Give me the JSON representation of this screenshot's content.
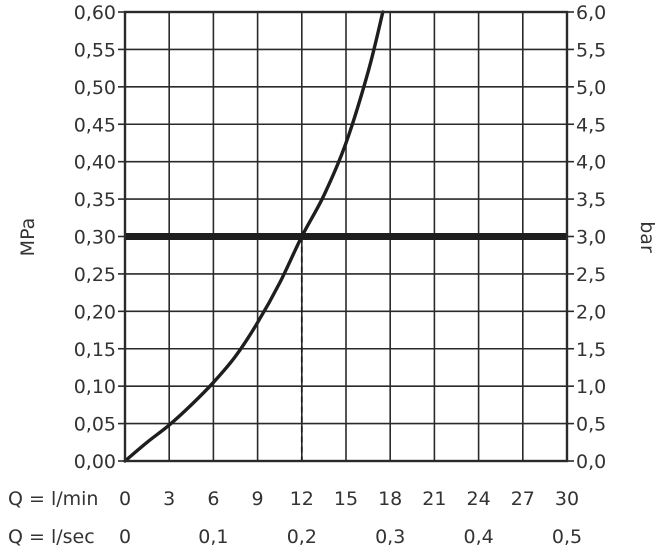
{
  "chart_data": {
    "type": "line",
    "x_unit_label": "Q = l/min",
    "x2_unit_label": "Q = l/sec",
    "ylabel": "MPa",
    "y2label": "bar",
    "xlim": [
      0,
      30
    ],
    "ylim": [
      0,
      0.6
    ],
    "x_ticks": [
      "0",
      "3",
      "6",
      "9",
      "12",
      "15",
      "18",
      "21",
      "24",
      "27",
      "30"
    ],
    "x2_ticks": [
      {
        "value": 0,
        "label": "0"
      },
      {
        "value": 6,
        "label": "0,1"
      },
      {
        "value": 12,
        "label": "0,2"
      },
      {
        "value": 18,
        "label": "0,3"
      },
      {
        "value": 24,
        "label": "0,4"
      },
      {
        "value": 30,
        "label": "0,5"
      }
    ],
    "y_ticks": [
      "0,00",
      "0,05",
      "0,10",
      "0,15",
      "0,20",
      "0,25",
      "0,30",
      "0,35",
      "0,40",
      "0,45",
      "0,50",
      "0,55",
      "0,60"
    ],
    "y2_ticks": [
      "0,0",
      "0,5",
      "1,0",
      "1,5",
      "2,0",
      "2,5",
      "3,0",
      "3,5",
      "4,0",
      "4,5",
      "5,0",
      "5,5",
      "6,0"
    ],
    "grid": true,
    "series": [
      {
        "x": [
          0,
          1.5,
          3,
          4.5,
          6,
          7.5,
          9,
          10.5,
          12,
          13.5,
          15,
          16.5,
          17.5
        ],
        "y": [
          0,
          0.025,
          0.048,
          0.075,
          0.105,
          0.14,
          0.185,
          0.238,
          0.3,
          0.355,
          0.425,
          0.52,
          0.6
        ]
      }
    ],
    "reference_line": {
      "y": 0.3
    },
    "marker_x": 12
  }
}
